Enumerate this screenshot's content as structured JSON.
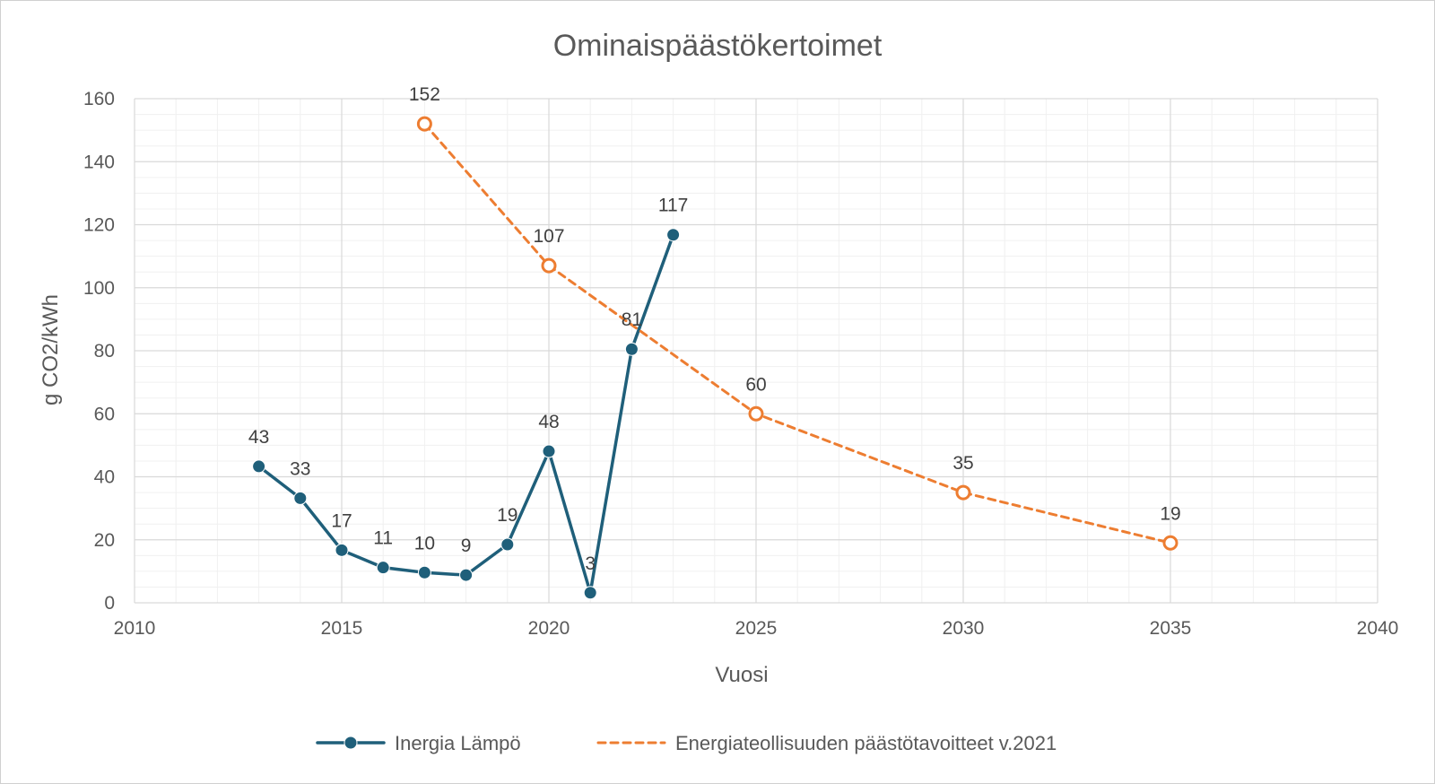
{
  "chart_data": {
    "type": "line",
    "title": "Ominaispäästökertoimet",
    "xlabel": "Vuosi",
    "ylabel": "g CO2/kWh",
    "xlim": [
      2010,
      2040
    ],
    "ylim": [
      0,
      160
    ],
    "x_major_ticks": [
      2010,
      2015,
      2020,
      2025,
      2030,
      2035,
      2040
    ],
    "y_major_ticks": [
      0,
      20,
      40,
      60,
      80,
      100,
      120,
      140,
      160
    ],
    "x_tick_labels": [
      "2010",
      "2015",
      "2020",
      "2025",
      "2030",
      "2035",
      "2040"
    ],
    "y_tick_labels": [
      "0",
      "20",
      "40",
      "60",
      "80",
      "100",
      "120",
      "140",
      "160"
    ],
    "grid": {
      "major": true,
      "minor": true,
      "x_minor_step": 1,
      "y_minor_step": 5
    },
    "legend_position": "bottom",
    "series": [
      {
        "name": "Inergia Lämpö",
        "color": "#1f5f7a",
        "line_style": "solid",
        "marker": "filled-circle",
        "x": [
          2013,
          2014,
          2015,
          2016,
          2017,
          2018,
          2019,
          2020,
          2021,
          2022,
          2023
        ],
        "y": [
          43.3,
          33.2,
          16.7,
          11.2,
          9.6,
          8.8,
          18.5,
          48.1,
          3.2,
          80.5,
          116.8
        ],
        "labels": [
          "43",
          "33",
          "17",
          "11",
          "10",
          "9",
          "19",
          "48",
          "3",
          "81",
          "117"
        ]
      },
      {
        "name": "Energiateollisuuden päästötavoitteet v.2021",
        "color": "#ed7d31",
        "line_style": "dashed",
        "marker": "hollow-circle",
        "x": [
          2017,
          2020,
          2025,
          2030,
          2035
        ],
        "y": [
          152,
          107,
          60,
          35,
          19
        ],
        "labels": [
          "152",
          "107",
          "60",
          "35",
          "19"
        ]
      }
    ]
  }
}
